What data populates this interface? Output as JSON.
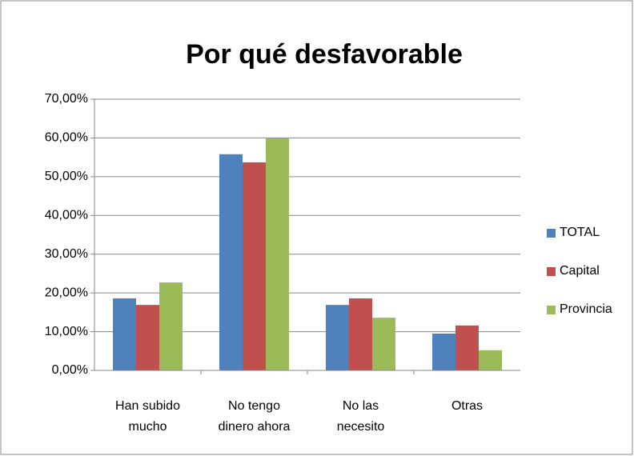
{
  "chart_data": {
    "type": "bar",
    "title": "Por qué desfavorable",
    "categories": [
      [
        "Han subido",
        "mucho"
      ],
      [
        "No tengo",
        "dinero ahora"
      ],
      [
        "No las",
        "necesito"
      ],
      [
        "Otras"
      ]
    ],
    "series": [
      {
        "name": "TOTAL",
        "color": "#4f81bd",
        "values": [
          18.6,
          55.8,
          16.9,
          9.5
        ]
      },
      {
        "name": "Capital",
        "color": "#c0504d",
        "values": [
          16.9,
          53.7,
          18.6,
          11.6
        ]
      },
      {
        "name": "Provincia",
        "color": "#9bbb59",
        "values": [
          22.7,
          59.9,
          13.6,
          5.2
        ]
      }
    ],
    "ylim": [
      0,
      70
    ],
    "yticks": [
      {
        "value": 0,
        "label": "0,00%"
      },
      {
        "value": 10,
        "label": "10,00%"
      },
      {
        "value": 20,
        "label": "20,00%"
      },
      {
        "value": 30,
        "label": "30,00%"
      },
      {
        "value": 40,
        "label": "40,00%"
      },
      {
        "value": 50,
        "label": "50,00%"
      },
      {
        "value": 60,
        "label": "60,00%"
      },
      {
        "value": 70,
        "label": "70,00%"
      }
    ],
    "grid": true,
    "legend": "right"
  }
}
